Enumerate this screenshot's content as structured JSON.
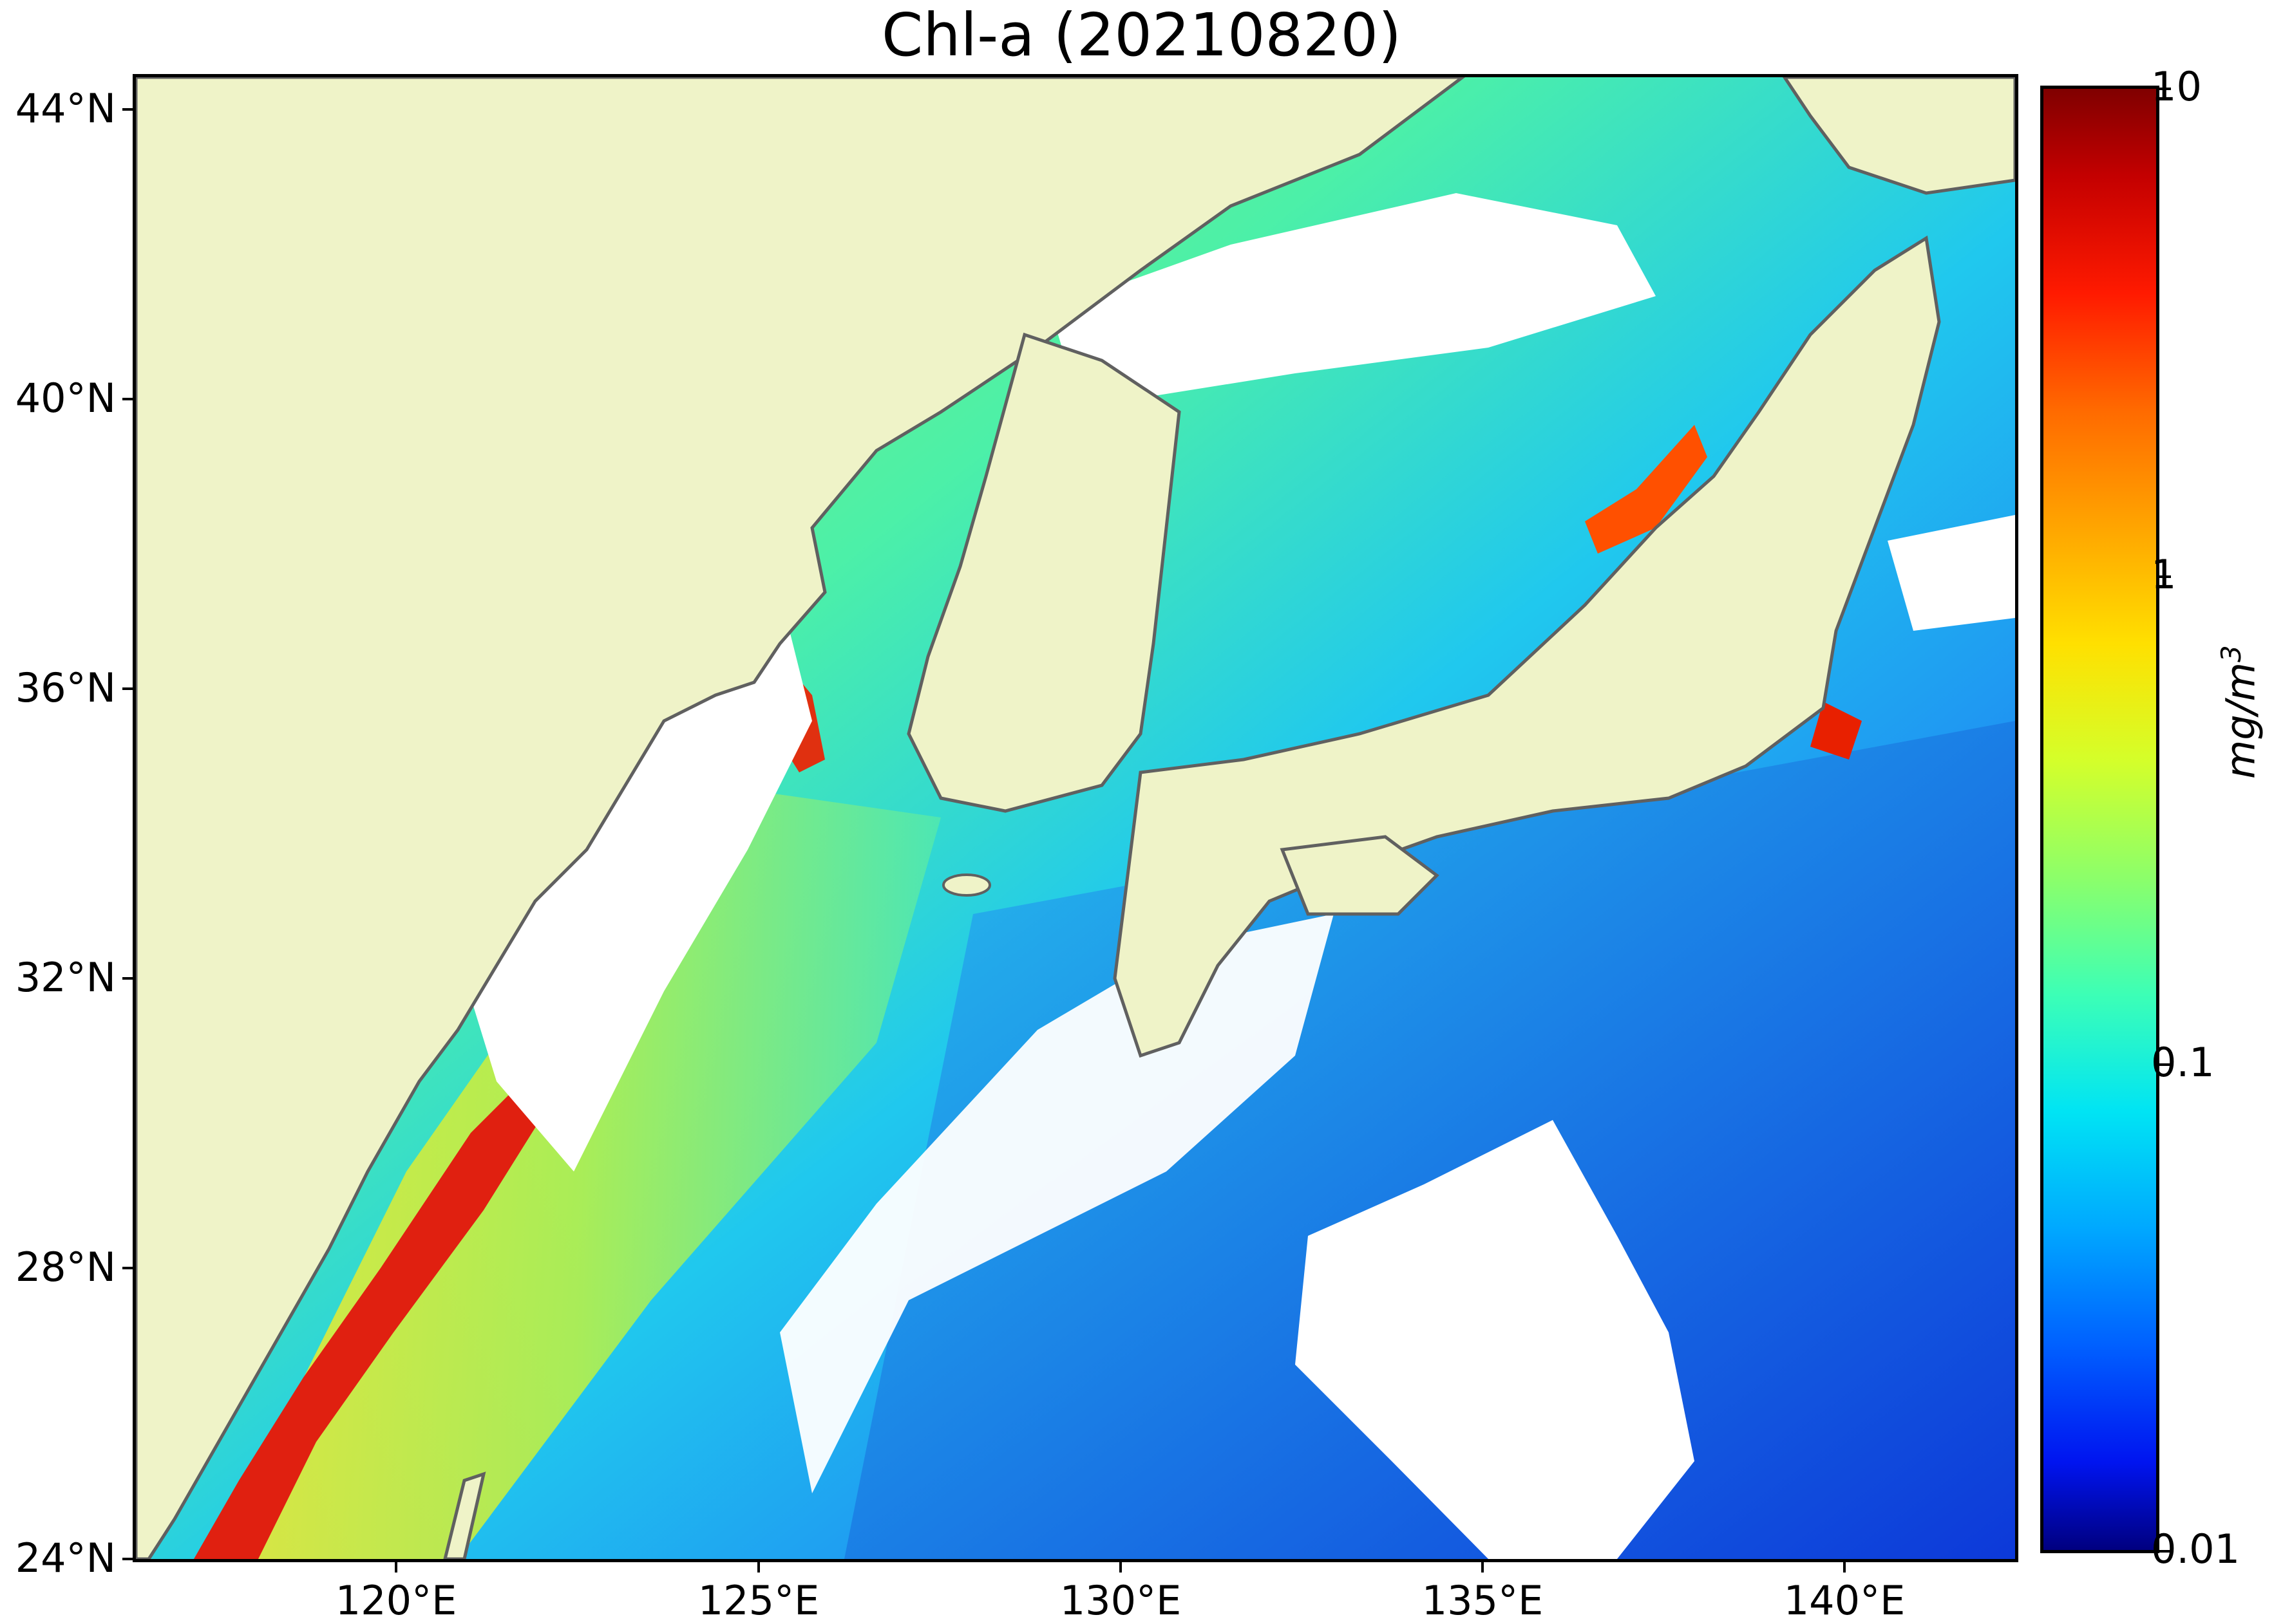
{
  "title": "Chl-a (20210820)",
  "map": {
    "region": "East China Sea / Sea of Japan",
    "colors": {
      "land": "#eff3c8",
      "cloud_mask": "#ffffff",
      "coastline": "#606060"
    }
  },
  "axes": {
    "lat_labels": [
      "44°N",
      "40°N",
      "36°N",
      "32°N",
      "28°N",
      "24°N"
    ],
    "lon_labels": [
      "120°E",
      "125°E",
      "130°E",
      "135°E",
      "140°E"
    ]
  },
  "colorbar": {
    "labels": [
      "10",
      "1",
      "0.1",
      "0.01"
    ],
    "unit": "mg/m",
    "unit_exponent": "3",
    "scale": "log",
    "colormap": "jet"
  }
}
